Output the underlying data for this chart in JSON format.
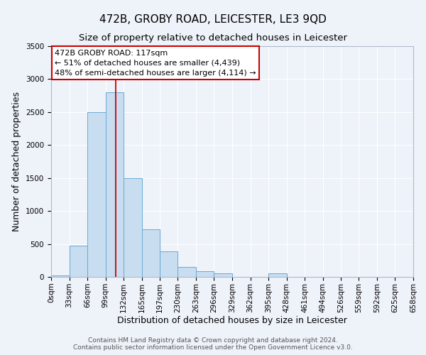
{
  "title": "472B, GROBY ROAD, LEICESTER, LE3 9QD",
  "subtitle": "Size of property relative to detached houses in Leicester",
  "xlabel": "Distribution of detached houses by size in Leicester",
  "ylabel": "Number of detached properties",
  "bin_edges": [
    0,
    33,
    66,
    99,
    132,
    165,
    197,
    230,
    263,
    296,
    329,
    362,
    395,
    428,
    461,
    494,
    526,
    559,
    592,
    625,
    658
  ],
  "bar_heights": [
    20,
    470,
    2500,
    2800,
    1500,
    720,
    390,
    150,
    90,
    55,
    0,
    0,
    55,
    0,
    0,
    0,
    0,
    0,
    0,
    0
  ],
  "bar_color": "#c9ddf0",
  "bar_edge_color": "#6aaad4",
  "vline_x": 117,
  "vline_color": "#cc0000",
  "annotation_box_text": "472B GROBY ROAD: 117sqm\n← 51% of detached houses are smaller (4,439)\n48% of semi-detached houses are larger (4,114) →",
  "annotation_box_color": "#cc0000",
  "annotation_box_facecolor": "white",
  "ylim": [
    0,
    3500
  ],
  "yticks": [
    0,
    500,
    1000,
    1500,
    2000,
    2500,
    3000,
    3500
  ],
  "footer_line1": "Contains HM Land Registry data © Crown copyright and database right 2024.",
  "footer_line2": "Contains public sector information licensed under the Open Government Licence v3.0.",
  "bg_color": "#eef2f9",
  "grid_color": "#ffffff",
  "title_fontsize": 11,
  "subtitle_fontsize": 9.5,
  "axis_label_fontsize": 9,
  "tick_fontsize": 7.5,
  "footer_fontsize": 6.5
}
